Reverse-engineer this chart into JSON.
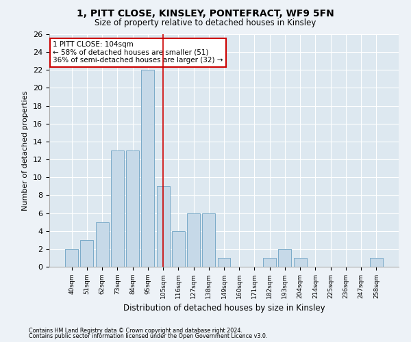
{
  "title1": "1, PITT CLOSE, KINSLEY, PONTEFRACT, WF9 5FN",
  "title2": "Size of property relative to detached houses in Kinsley",
  "xlabel": "Distribution of detached houses by size in Kinsley",
  "ylabel": "Number of detached properties",
  "categories": [
    "40sqm",
    "51sqm",
    "62sqm",
    "73sqm",
    "84sqm",
    "95sqm",
    "105sqm",
    "116sqm",
    "127sqm",
    "138sqm",
    "149sqm",
    "160sqm",
    "171sqm",
    "182sqm",
    "193sqm",
    "204sqm",
    "214sqm",
    "225sqm",
    "236sqm",
    "247sqm",
    "258sqm"
  ],
  "values": [
    2,
    3,
    5,
    13,
    13,
    22,
    9,
    4,
    6,
    6,
    1,
    0,
    0,
    1,
    2,
    1,
    0,
    0,
    0,
    0,
    1
  ],
  "bar_color": "#c6d9e8",
  "bar_edge_color": "#7aaac8",
  "vline_index": 6,
  "vline_color": "#cc0000",
  "annotation_line1": "1 PITT CLOSE: 104sqm",
  "annotation_line2": "← 58% of detached houses are smaller (51)",
  "annotation_line3": "36% of semi-detached houses are larger (32) →",
  "annotation_box_color": "#ffffff",
  "annotation_box_edge": "#cc0000",
  "ylim": [
    0,
    26
  ],
  "yticks": [
    0,
    2,
    4,
    6,
    8,
    10,
    12,
    14,
    16,
    18,
    20,
    22,
    24,
    26
  ],
  "footer1": "Contains HM Land Registry data © Crown copyright and database right 2024.",
  "footer2": "Contains public sector information licensed under the Open Government Licence v3.0.",
  "bg_color": "#edf2f7",
  "plot_bg_color": "#dde8f0"
}
